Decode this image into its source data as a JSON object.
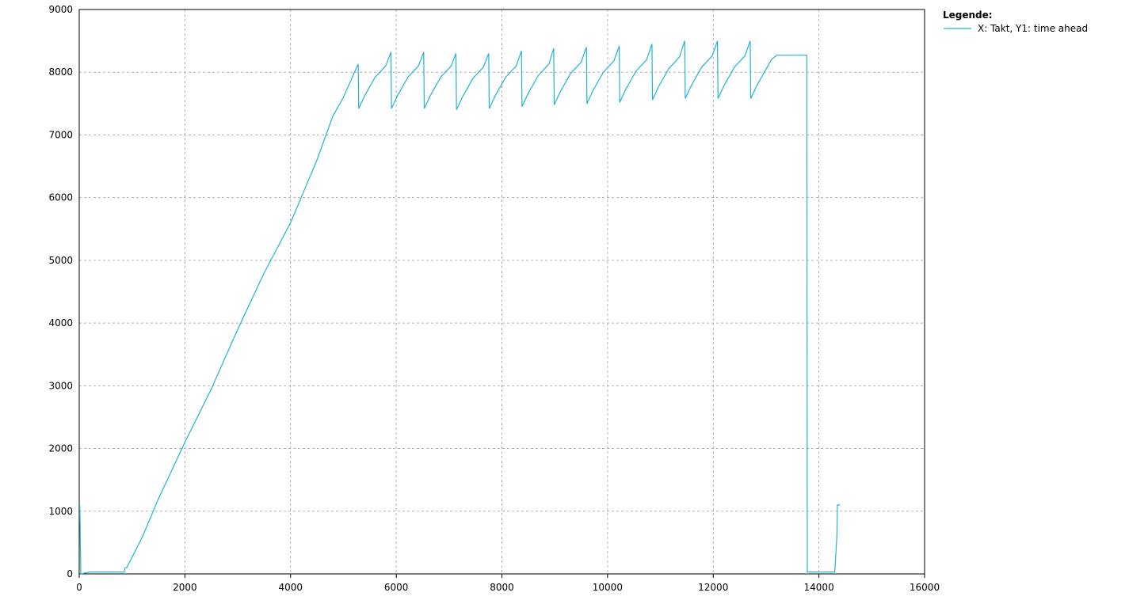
{
  "chart_data": {
    "type": "line",
    "legend_title": "Legende:",
    "legend_position": "outside-top-right",
    "grid": true,
    "xlim": [
      0,
      16000
    ],
    "xticks": [
      0,
      2000,
      4000,
      6000,
      8000,
      10000,
      12000,
      14000,
      16000
    ],
    "ylim": [
      0,
      9000
    ],
    "yticks": [
      0,
      1000,
      2000,
      3000,
      4000,
      5000,
      6000,
      7000,
      8000,
      9000
    ],
    "x": [
      0,
      10,
      30,
      200,
      850,
      870,
      900,
      1200,
      1500,
      2000,
      2500,
      3000,
      3500,
      4000,
      4500,
      4800,
      5000,
      5280,
      5290,
      5400,
      5600,
      5800,
      5900,
      5910,
      6020,
      6220,
      6420,
      6520,
      6530,
      6640,
      6840,
      7040,
      7130,
      7140,
      7250,
      7450,
      7650,
      7750,
      7760,
      7870,
      8070,
      8270,
      8370,
      8380,
      8490,
      8690,
      8890,
      8980,
      8990,
      9100,
      9300,
      9500,
      9600,
      9610,
      9720,
      9920,
      10120,
      10220,
      10230,
      10340,
      10540,
      10740,
      10840,
      10850,
      10960,
      11160,
      11360,
      11460,
      11470,
      11580,
      11780,
      11980,
      12080,
      12090,
      12200,
      12400,
      12600,
      12700,
      12710,
      12820,
      13000,
      13100,
      13200,
      13770,
      13780,
      14300,
      14340,
      14350,
      14400
    ],
    "series": [
      {
        "name": "X: Takt, Y1: time ahead",
        "color": "#1fb4d6",
        "values": [
          1100,
          1100,
          0,
          30,
          30,
          100,
          100,
          600,
          1200,
          2100,
          2950,
          3900,
          4800,
          5600,
          6600,
          7300,
          7600,
          8130,
          7420,
          7620,
          7920,
          8100,
          8320,
          7420,
          7620,
          7920,
          8100,
          8320,
          7420,
          7620,
          7920,
          8100,
          8300,
          7400,
          7600,
          7900,
          8080,
          8300,
          7420,
          7620,
          7920,
          8100,
          8340,
          7450,
          7650,
          7950,
          8130,
          8380,
          7480,
          7680,
          7980,
          8160,
          8400,
          7500,
          7700,
          8000,
          8180,
          8420,
          7520,
          7720,
          8020,
          8200,
          8450,
          7560,
          7760,
          8060,
          8240,
          8500,
          7580,
          7780,
          8080,
          8260,
          8500,
          7580,
          7780,
          8080,
          8260,
          8500,
          7580,
          7780,
          8050,
          8200,
          8270,
          8270,
          30,
          30,
          600,
          1100,
          1100
        ]
      }
    ]
  }
}
